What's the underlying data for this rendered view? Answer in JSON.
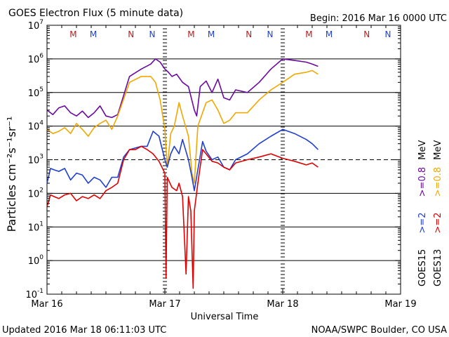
{
  "header": {
    "title": "GOES Electron Flux (5 minute data)",
    "begin": "Begin: 2016 Mar 16 0000 UTC"
  },
  "footer": {
    "updated": "Updated 2016 Mar 18 06:11:03 UTC",
    "credit": "NOAA/SWPC Boulder, CO USA"
  },
  "colors": {
    "goes15_2mev": "#1f3fd1",
    "goes15_08mev": "#6a0aa0",
    "goes13_2mev": "#e00000",
    "goes13_08mev": "#f0a800",
    "marker_m": "#c01818",
    "marker_n": "#1f3fd1"
  },
  "chart_data": {
    "type": "line",
    "title": "GOES Electron Flux (5 minute data)",
    "xlabel": "Universal Time",
    "ylabel": "Particles cm⁻²s⁻¹sr⁻¹",
    "y_scale": "log",
    "ylim": [
      0.1,
      10000000
    ],
    "xlim": [
      0,
      3
    ],
    "x_ticks": [
      {
        "x": 0,
        "label": "Mar 16"
      },
      {
        "x": 1,
        "label": "Mar 17"
      },
      {
        "x": 2,
        "label": "Mar 18"
      },
      {
        "x": 3,
        "label": "Mar 19"
      }
    ],
    "y_ticks": [
      {
        "exp": -1,
        "base": "10",
        "sup": "-1"
      },
      {
        "exp": 0,
        "base": "10",
        "sup": "0"
      },
      {
        "exp": 1,
        "base": "10",
        "sup": "1"
      },
      {
        "exp": 2,
        "base": "10",
        "sup": "2"
      },
      {
        "exp": 3,
        "base": "10",
        "sup": "3"
      },
      {
        "exp": 4,
        "base": "10",
        "sup": "4"
      },
      {
        "exp": 5,
        "base": "10",
        "sup": "5"
      },
      {
        "exp": 6,
        "base": "10",
        "sup": "6"
      },
      {
        "exp": 7,
        "base": "10",
        "sup": "7"
      }
    ],
    "threshold": 1000,
    "grid": true,
    "legend": {
      "goes15": "GOES15",
      "goes13": "GOES13",
      "e2": ">=2",
      "e08": ">=0.8",
      "unit": "MeV"
    },
    "markers": [
      {
        "x": 0.33,
        "label": "M",
        "sat": "goes13"
      },
      {
        "x": 0.5,
        "label": "M",
        "sat": "goes15"
      },
      {
        "x": 0.82,
        "label": "N",
        "sat": "goes13"
      },
      {
        "x": 1.0,
        "label": "N",
        "sat": "goes15"
      },
      {
        "x": 1.33,
        "label": "M",
        "sat": "goes13"
      },
      {
        "x": 1.5,
        "label": "M",
        "sat": "goes15"
      },
      {
        "x": 1.82,
        "label": "N",
        "sat": "goes13"
      },
      {
        "x": 2.0,
        "label": "N",
        "sat": "goes15"
      },
      {
        "x": 2.33,
        "label": "M",
        "sat": "goes13"
      },
      {
        "x": 2.5,
        "label": "M",
        "sat": "goes15"
      },
      {
        "x": 2.82,
        "label": "N",
        "sat": "goes13"
      },
      {
        "x": 3.0,
        "label": "N",
        "sat": "goes15"
      }
    ],
    "series": [
      {
        "name": "GOES15 >=0.8 MeV",
        "color_key": "goes15_08mev",
        "points": [
          [
            0.0,
            30000
          ],
          [
            0.05,
            22000
          ],
          [
            0.1,
            35000
          ],
          [
            0.15,
            40000
          ],
          [
            0.2,
            25000
          ],
          [
            0.25,
            20000
          ],
          [
            0.3,
            28000
          ],
          [
            0.35,
            18000
          ],
          [
            0.4,
            25000
          ],
          [
            0.45,
            40000
          ],
          [
            0.5,
            20000
          ],
          [
            0.55,
            18000
          ],
          [
            0.6,
            22000
          ],
          [
            0.7,
            300000
          ],
          [
            0.8,
            500000
          ],
          [
            0.88,
            700000
          ],
          [
            0.92,
            1000000
          ],
          [
            0.96,
            800000
          ],
          [
            1.0,
            500000
          ],
          [
            1.03,
            400000
          ],
          [
            1.06,
            300000
          ],
          [
            1.1,
            350000
          ],
          [
            1.15,
            200000
          ],
          [
            1.2,
            150000
          ],
          [
            1.25,
            30000
          ],
          [
            1.27,
            20000
          ],
          [
            1.3,
            150000
          ],
          [
            1.35,
            220000
          ],
          [
            1.4,
            100000
          ],
          [
            1.45,
            250000
          ],
          [
            1.5,
            70000
          ],
          [
            1.55,
            60000
          ],
          [
            1.6,
            120000
          ],
          [
            1.7,
            100000
          ],
          [
            1.8,
            200000
          ],
          [
            1.9,
            500000
          ],
          [
            2.0,
            1000000
          ],
          [
            2.1,
            900000
          ],
          [
            2.2,
            800000
          ],
          [
            2.25,
            700000
          ],
          [
            2.3,
            600000
          ]
        ]
      },
      {
        "name": "GOES13 >=0.8 MeV",
        "color_key": "goes13_08mev",
        "points": [
          [
            0.0,
            8000
          ],
          [
            0.05,
            6000
          ],
          [
            0.1,
            7000
          ],
          [
            0.15,
            9000
          ],
          [
            0.2,
            6000
          ],
          [
            0.25,
            12000
          ],
          [
            0.3,
            8000
          ],
          [
            0.35,
            5000
          ],
          [
            0.4,
            9000
          ],
          [
            0.45,
            12000
          ],
          [
            0.5,
            15000
          ],
          [
            0.55,
            8000
          ],
          [
            0.6,
            20000
          ],
          [
            0.7,
            200000
          ],
          [
            0.8,
            300000
          ],
          [
            0.88,
            300000
          ],
          [
            0.92,
            200000
          ],
          [
            0.96,
            60000
          ],
          [
            1.0,
            8000
          ],
          [
            1.02,
            600
          ],
          [
            1.05,
            6000
          ],
          [
            1.08,
            10000
          ],
          [
            1.12,
            50000
          ],
          [
            1.15,
            20000
          ],
          [
            1.2,
            5000
          ],
          [
            1.23,
            400
          ],
          [
            1.25,
            200
          ],
          [
            1.28,
            10000
          ],
          [
            1.35,
            50000
          ],
          [
            1.4,
            60000
          ],
          [
            1.45,
            30000
          ],
          [
            1.5,
            12000
          ],
          [
            1.55,
            15000
          ],
          [
            1.6,
            25000
          ],
          [
            1.7,
            25000
          ],
          [
            1.8,
            60000
          ],
          [
            1.9,
            120000
          ],
          [
            2.0,
            200000
          ],
          [
            2.1,
            350000
          ],
          [
            2.2,
            400000
          ],
          [
            2.25,
            450000
          ],
          [
            2.3,
            350000
          ]
        ]
      },
      {
        "name": "GOES15 >=2 MeV",
        "color_key": "goes15_2mev",
        "points": [
          [
            0.0,
            200
          ],
          [
            0.03,
            550
          ],
          [
            0.06,
            500
          ],
          [
            0.1,
            450
          ],
          [
            0.15,
            550
          ],
          [
            0.2,
            250
          ],
          [
            0.25,
            400
          ],
          [
            0.3,
            350
          ],
          [
            0.35,
            200
          ],
          [
            0.4,
            300
          ],
          [
            0.45,
            250
          ],
          [
            0.5,
            150
          ],
          [
            0.55,
            300
          ],
          [
            0.6,
            300
          ],
          [
            0.65,
            1200
          ],
          [
            0.7,
            2000
          ],
          [
            0.8,
            2500
          ],
          [
            0.85,
            2500
          ],
          [
            0.9,
            7000
          ],
          [
            0.95,
            5000
          ],
          [
            1.0,
            1000
          ],
          [
            1.02,
            600
          ],
          [
            1.05,
            1500
          ],
          [
            1.08,
            2500
          ],
          [
            1.12,
            1500
          ],
          [
            1.15,
            4000
          ],
          [
            1.2,
            1000
          ],
          [
            1.23,
            300
          ],
          [
            1.25,
            120
          ],
          [
            1.28,
            500
          ],
          [
            1.32,
            3500
          ],
          [
            1.35,
            1800
          ],
          [
            1.4,
            1000
          ],
          [
            1.45,
            1200
          ],
          [
            1.5,
            600
          ],
          [
            1.55,
            500
          ],
          [
            1.6,
            1000
          ],
          [
            1.7,
            1500
          ],
          [
            1.8,
            3000
          ],
          [
            1.9,
            5000
          ],
          [
            2.0,
            8000
          ],
          [
            2.1,
            6000
          ],
          [
            2.2,
            4000
          ],
          [
            2.25,
            3000
          ],
          [
            2.3,
            2000
          ]
        ]
      },
      {
        "name": "GOES13 >=2 MeV",
        "color_key": "goes13_2mev",
        "points": [
          [
            0.0,
            40
          ],
          [
            0.03,
            90
          ],
          [
            0.06,
            80
          ],
          [
            0.1,
            70
          ],
          [
            0.15,
            90
          ],
          [
            0.2,
            100
          ],
          [
            0.25,
            60
          ],
          [
            0.3,
            80
          ],
          [
            0.35,
            70
          ],
          [
            0.4,
            90
          ],
          [
            0.45,
            70
          ],
          [
            0.5,
            120
          ],
          [
            0.55,
            150
          ],
          [
            0.6,
            200
          ],
          [
            0.65,
            1000
          ],
          [
            0.7,
            2000
          ],
          [
            0.75,
            2000
          ],
          [
            0.8,
            2500
          ],
          [
            0.85,
            2000
          ],
          [
            0.9,
            1500
          ],
          [
            0.95,
            900
          ],
          [
            1.0,
            400
          ],
          [
            1.01,
            0.3
          ],
          [
            1.02,
            300
          ],
          [
            1.06,
            150
          ],
          [
            1.1,
            120
          ],
          [
            1.12,
            200
          ],
          [
            1.15,
            80
          ],
          [
            1.18,
            0.4
          ],
          [
            1.2,
            80
          ],
          [
            1.22,
            30
          ],
          [
            1.24,
            0.15
          ],
          [
            1.25,
            30
          ],
          [
            1.28,
            200
          ],
          [
            1.32,
            2000
          ],
          [
            1.35,
            1500
          ],
          [
            1.4,
            900
          ],
          [
            1.45,
            800
          ],
          [
            1.5,
            600
          ],
          [
            1.55,
            500
          ],
          [
            1.6,
            800
          ],
          [
            1.7,
            1000
          ],
          [
            1.8,
            1200
          ],
          [
            1.9,
            1500
          ],
          [
            2.0,
            1100
          ],
          [
            2.1,
            900
          ],
          [
            2.2,
            700
          ],
          [
            2.25,
            800
          ],
          [
            2.3,
            600
          ]
        ]
      }
    ]
  }
}
